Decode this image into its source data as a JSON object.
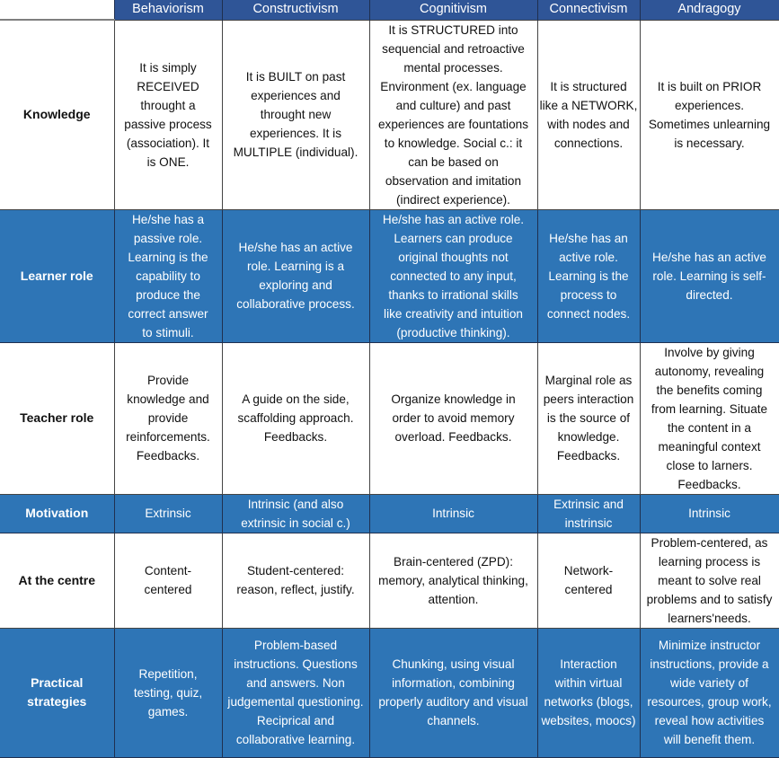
{
  "colors": {
    "header": "#2f5597",
    "blue_row": "#2e75b6",
    "white_row": "#ffffff"
  },
  "columns": [
    "Behaviorism",
    "Constructivism",
    "Cognitivism",
    "Connectivism",
    "Andragogy"
  ],
  "rows": [
    {
      "label": "Knowledge",
      "style": "white",
      "cells": [
        "It is simply\nRECEIVED\nthrought a\npassive process\n(association). It\nis ONE.",
        "It is BUILT on past\nexperiences and\nthrought new\nexperiences. It is\nMULTIPLE (individual).",
        "It is STRUCTURED into\nsequencial and retroactive\nmental processes.\nEnvironment (ex. language\nand culture) and past\nexperiences are fountations\nto knowledge. Social c.: it\ncan be based on\nobservation and imitation\n(indirect experience).",
        "It is structured\nlike a NETWORK,\nwith nodes and\nconnections.",
        "It is built on PRIOR\nexperiences.\nSometimes unlearning\nis necessary."
      ]
    },
    {
      "label": "Learner role",
      "style": "blue",
      "cells": [
        "He/she has a\npassive role.\nLearning is the\ncapability to\nproduce the\ncorrect answer\nto stimuli.",
        "He/she has an active\nrole. Learning is a\nexploring and\ncollaborative process.",
        "He/she has an active role.\nLearners can produce\noriginal thoughts not\nconnected to any input,\nthanks to  irrational skills\nlike creativity and intuition\n(productive thinking).",
        "He/she has an\nactive role.\nLearning is the\nprocess to\nconnect nodes.",
        "He/she has an active\nrole. Learning is self-\ndirected."
      ]
    },
    {
      "label": "Teacher role",
      "style": "white",
      "cells": [
        "Provide\nknowledge and\nprovide\nreinforcements.\nFeedbacks.",
        "A guide on the side,\nscaffolding approach.\nFeedbacks.",
        "Organize knowledge in\norder to avoid memory\noverload. Feedbacks.",
        "Marginal role as\npeers interaction\nis the source of\nknowledge.\nFeedbacks.",
        "Involve by giving\nautonomy, revealing\nthe benefits coming\nfrom learning. Situate\nthe content in a\nmeaningful context\nclose to larners.\nFeedbacks."
      ]
    },
    {
      "label": "Motivation",
      "style": "blue",
      "cells": [
        "Extrinsic",
        "Intrinsic (and also\nextrinsic in social c.)",
        "Intrinsic",
        "Extrinsic and\ninstrinsic",
        "Intrinsic"
      ]
    },
    {
      "label": "At the centre",
      "style": "white",
      "cells": [
        "Content-\ncentered",
        "Student-centered:\nreason, reflect, justify.",
        "Brain-centered (ZPD):\nmemory, analytical thinking,\nattention.",
        "Network-\ncentered",
        "Problem-centered, as\nlearning process is\nmeant to solve real\nproblems and to satisfy\nlearners'needs."
      ]
    },
    {
      "label": "Practical\nstrategies",
      "style": "blue",
      "cells": [
        "Repetition,\ntesting, quiz,\ngames.",
        "Problem-based\ninstructions. Questions\nand answers. Non\njudgemental questioning.\nReciprical and\ncollaborative learning.",
        "Chunking, using visual\ninformation, combining\nproperly auditory and visual\nchannels.",
        "Interaction\nwithin virtual\nnetworks (blogs,\nwebsites, moocs)",
        "Minimize instructor\ninstructions, provide a\nwide variety of\nresources, group work,\nreveal how activities\nwill benefit them."
      ]
    }
  ]
}
